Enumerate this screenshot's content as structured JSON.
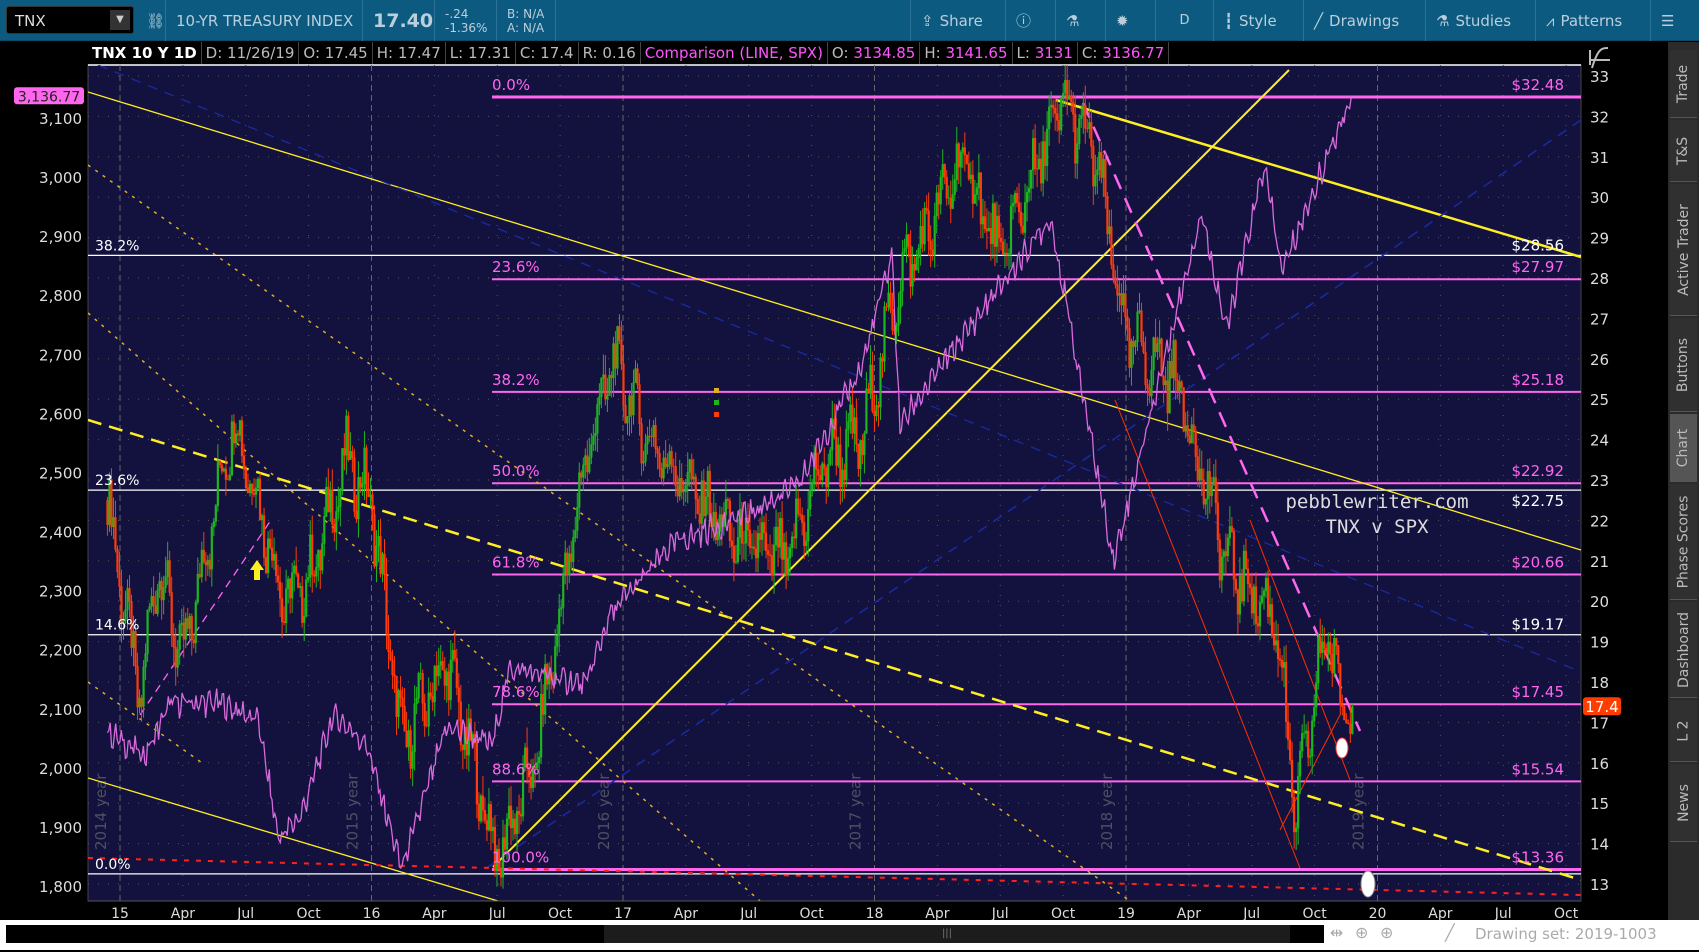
{
  "toolbar": {
    "symbol": "TNX",
    "description": "10-YR TREASURY INDEX",
    "last": "17.40",
    "change": "-.24",
    "change_pct": "-1.36%",
    "bid": "B: N/A",
    "ask": "A: N/A",
    "share": "Share",
    "aggregation": "D",
    "style": "Style",
    "drawings": "Drawings",
    "studies": "Studies",
    "patterns": "Patterns"
  },
  "infobar": {
    "title": "TNX 10 Y 1D",
    "date": "D: 11/26/19",
    "open": "O: 17.45",
    "high": "H: 17.47",
    "low": "L: 17.31",
    "close": "C: 17.4",
    "range": "R: 0.16",
    "comparison": "Comparison (LINE, SPX)",
    "c_open_l": "O:",
    "c_open": "3134.85",
    "c_high_l": "H:",
    "c_high": "3141.65",
    "c_low_l": "L:",
    "c_low": "3131",
    "c_close_l": "C:",
    "c_close": "3136.77"
  },
  "sidebar": [
    "Trade",
    "T&S",
    "Active Trader",
    "Buttons",
    "Chart",
    "Phase Scores",
    "Dashboard",
    "L 2",
    "News"
  ],
  "sidebar_selected": "Chart",
  "bottom": {
    "drawing_set": "Drawing set: 2019-1003"
  },
  "colors": {
    "up": "#1fb51f",
    "down": "#ff3b0a",
    "comparison": "#d86adc",
    "fib": "#ff66ee",
    "trend": "#ffee22",
    "background": "#13123f",
    "price_tag": "#ff3d00"
  },
  "chart_data": {
    "type": "candlestick",
    "right_axis": {
      "ticks": [
        13,
        14,
        15,
        16,
        17,
        18,
        19,
        20,
        21,
        22,
        23,
        24,
        25,
        26,
        27,
        28,
        29,
        30,
        31,
        32,
        33
      ],
      "range": [
        12.8,
        33.3
      ]
    },
    "left_axis": {
      "ticks": [
        "1,800",
        "1,900",
        "2,000",
        "2,100",
        "2,200",
        "2,300",
        "2,400",
        "2,500",
        "2,600",
        "2,700",
        "2,800",
        "2,900",
        "3,000",
        "3,100"
      ],
      "range": [
        1780,
        3180
      ]
    },
    "x_ticks": [
      "15",
      "Apr",
      "Jul",
      "Oct",
      "16",
      "Apr",
      "Jul",
      "Oct",
      "17",
      "Apr",
      "Jul",
      "Oct",
      "18",
      "Apr",
      "Jul",
      "Oct",
      "19",
      "Apr",
      "Jul",
      "Oct",
      "20",
      "Apr",
      "Jul",
      "Oct"
    ],
    "year_labels": [
      "2014 year",
      "2015 year",
      "2016 year",
      "2017 year",
      "2018 year",
      "2019 year"
    ],
    "last_price_tag": "17.4",
    "comparison_tag": "3,136.77",
    "watermark": [
      "pebblewriter.com",
      "TNX v SPX"
    ],
    "fib_pink": [
      {
        "pct": "0.0%",
        "price": 32.48,
        "label": "$32.48"
      },
      {
        "pct": "23.6%",
        "price": 27.97,
        "label": "$27.97"
      },
      {
        "pct": "38.2%",
        "price": 25.18,
        "label": "$25.18"
      },
      {
        "pct": "50.0%",
        "price": 22.92,
        "label": "$22.92"
      },
      {
        "pct": "61.8%",
        "price": 20.66,
        "label": "$20.66"
      },
      {
        "pct": "78.6%",
        "price": 17.45,
        "label": "$17.45"
      },
      {
        "pct": "88.6%",
        "price": 15.54,
        "label": "$15.54"
      },
      {
        "pct": "100.0%",
        "price": 13.36,
        "label": "$13.36"
      }
    ],
    "fib_white": [
      {
        "pct": "38.2%",
        "price": 28.56,
        "label": "$28.56"
      },
      {
        "pct": "23.6%",
        "price": 22.75,
        "label": "$22.75"
      },
      {
        "pct": "14.6%",
        "price": 19.17,
        "label": "$19.17"
      },
      {
        "pct": "0.0%",
        "price": 13.25,
        "label": ""
      }
    ],
    "tnx_path": [
      [
        2014.95,
        22.5
      ],
      [
        2015.08,
        17.5
      ],
      [
        2015.15,
        21
      ],
      [
        2015.25,
        18.5
      ],
      [
        2015.45,
        24.5
      ],
      [
        2015.55,
        22.5
      ],
      [
        2015.65,
        20
      ],
      [
        2015.75,
        20.5
      ],
      [
        2015.9,
        23.5
      ],
      [
        2016.0,
        22.5
      ],
      [
        2016.12,
        16.5
      ],
      [
        2016.3,
        18.5
      ],
      [
        2016.5,
        13.6
      ],
      [
        2016.65,
        16
      ],
      [
        2016.85,
        23.5
      ],
      [
        2016.96,
        26
      ],
      [
        2017.1,
        24
      ],
      [
        2017.45,
        21.5
      ],
      [
        2017.65,
        21
      ],
      [
        2017.8,
        23.5
      ],
      [
        2017.95,
        24
      ],
      [
        2018.1,
        28
      ],
      [
        2018.2,
        29
      ],
      [
        2018.35,
        31
      ],
      [
        2018.5,
        28.5
      ],
      [
        2018.75,
        32.4
      ],
      [
        2018.88,
        31
      ],
      [
        2019.0,
        26.5
      ],
      [
        2019.2,
        25.5
      ],
      [
        2019.4,
        21
      ],
      [
        2019.6,
        19.5
      ],
      [
        2019.67,
        14.6
      ],
      [
        2019.8,
        19.5
      ],
      [
        2019.85,
        17.5
      ],
      [
        2019.9,
        17.4
      ]
    ],
    "spx_path": [
      [
        2014.95,
        2060
      ],
      [
        2015.1,
        2020
      ],
      [
        2015.2,
        2110
      ],
      [
        2015.4,
        2110
      ],
      [
        2015.55,
        2080
      ],
      [
        2015.63,
        1880
      ],
      [
        2015.72,
        1920
      ],
      [
        2015.85,
        2090
      ],
      [
        2015.98,
        2040
      ],
      [
        2016.12,
        1830
      ],
      [
        2016.3,
        2070
      ],
      [
        2016.48,
        2040
      ],
      [
        2016.55,
        2170
      ],
      [
        2016.85,
        2140
      ],
      [
        2016.95,
        2260
      ],
      [
        2017.2,
        2380
      ],
      [
        2017.5,
        2430
      ],
      [
        2017.7,
        2480
      ],
      [
        2017.95,
        2680
      ],
      [
        2018.07,
        2870
      ],
      [
        2018.1,
        2580
      ],
      [
        2018.3,
        2700
      ],
      [
        2018.7,
        2930
      ],
      [
        2018.95,
        2350
      ],
      [
        2019.3,
        2940
      ],
      [
        2019.4,
        2740
      ],
      [
        2019.55,
        3020
      ],
      [
        2019.62,
        2840
      ],
      [
        2019.75,
        2980
      ],
      [
        2019.9,
        3140
      ]
    ]
  }
}
